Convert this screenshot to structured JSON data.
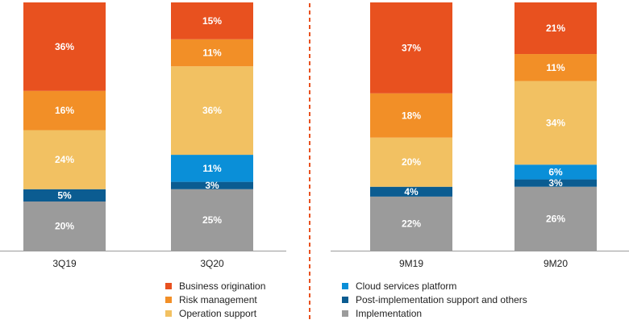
{
  "chart_data": {
    "type": "bar",
    "stacked": true,
    "percent_stacked": true,
    "panels": [
      {
        "categories": [
          "3Q19",
          "3Q20"
        ]
      },
      {
        "categories": [
          "9M19",
          "9M20"
        ]
      }
    ],
    "categories": [
      "3Q19",
      "3Q20",
      "9M19",
      "9M20"
    ],
    "series": [
      {
        "name": "Implementation",
        "color": "#9b9b9b",
        "values": [
          20,
          25,
          22,
          26
        ]
      },
      {
        "name": "Post-implementation support and others",
        "color": "#0b5c91",
        "values": [
          5,
          3,
          4,
          3
        ]
      },
      {
        "name": "Cloud services platform",
        "color": "#0a8fd8",
        "values": [
          0,
          11,
          0,
          6
        ]
      },
      {
        "name": "Operation support",
        "color": "#f2c162",
        "values": [
          24,
          36,
          20,
          34
        ]
      },
      {
        "name": "Risk management",
        "color": "#f28f27",
        "values": [
          16,
          11,
          18,
          11
        ]
      },
      {
        "name": "Business origination",
        "color": "#e8511f",
        "values": [
          36,
          15,
          37,
          21
        ]
      }
    ],
    "data_labels": [
      [
        "20%",
        "5%",
        "",
        "24%",
        "16%",
        "36%"
      ],
      [
        "25%",
        "3%",
        "11%",
        "36%",
        "11%",
        "15%"
      ],
      [
        "22%",
        "4%",
        "",
        "20%",
        "18%",
        "37%"
      ],
      [
        "26%",
        "3%",
        "6%",
        "34%",
        "11%",
        "21%"
      ]
    ],
    "divider_color": "#e8511f",
    "axis_color": "#9b9b9b",
    "legend": {
      "position": "bottom",
      "left_column": [
        "Business origination",
        "Risk management",
        "Operation support"
      ],
      "right_column": [
        "Cloud services platform",
        "Post-implementation support and others",
        "Implementation"
      ]
    }
  }
}
